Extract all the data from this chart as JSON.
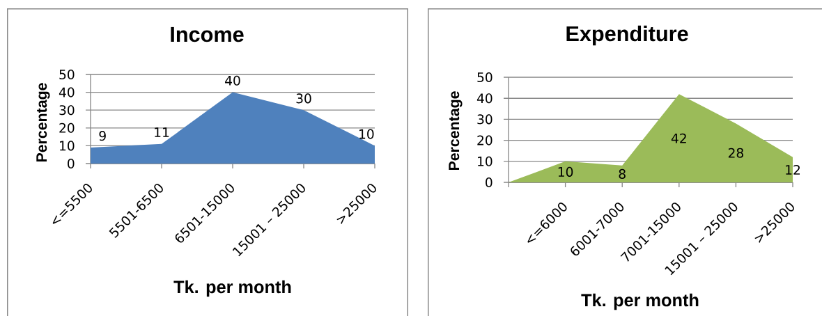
{
  "chart_data": [
    {
      "type": "area",
      "title": "Income",
      "xlabel": "Tk. per month",
      "ylabel": "Percentage",
      "categories": [
        "<=5500",
        "5501-6500",
        "6501-15000",
        "15001 – 25000",
        ">25000"
      ],
      "values": [
        9,
        11,
        40,
        30,
        10
      ],
      "color": "#4f81bd",
      "ylim": [
        0,
        50
      ],
      "yticks": [
        0,
        10,
        20,
        30,
        40,
        50
      ],
      "grid": "y",
      "data_labels": true
    },
    {
      "type": "area",
      "title": "Expenditure",
      "xlabel": "Tk. per month",
      "ylabel": "Percentage",
      "categories": [
        null,
        "<=6000",
        "6001-7000",
        "7001-15000",
        "15001 – 25000",
        ">25000"
      ],
      "values": [
        0,
        10,
        8,
        42,
        28,
        12
      ],
      "value_labels": [
        null,
        "10",
        "8",
        "42",
        "28",
        "12"
      ],
      "color": "#9bbb59",
      "ylim": [
        0,
        50
      ],
      "yticks": [
        0,
        10,
        20,
        30,
        40,
        50
      ],
      "grid": "y"
    }
  ]
}
